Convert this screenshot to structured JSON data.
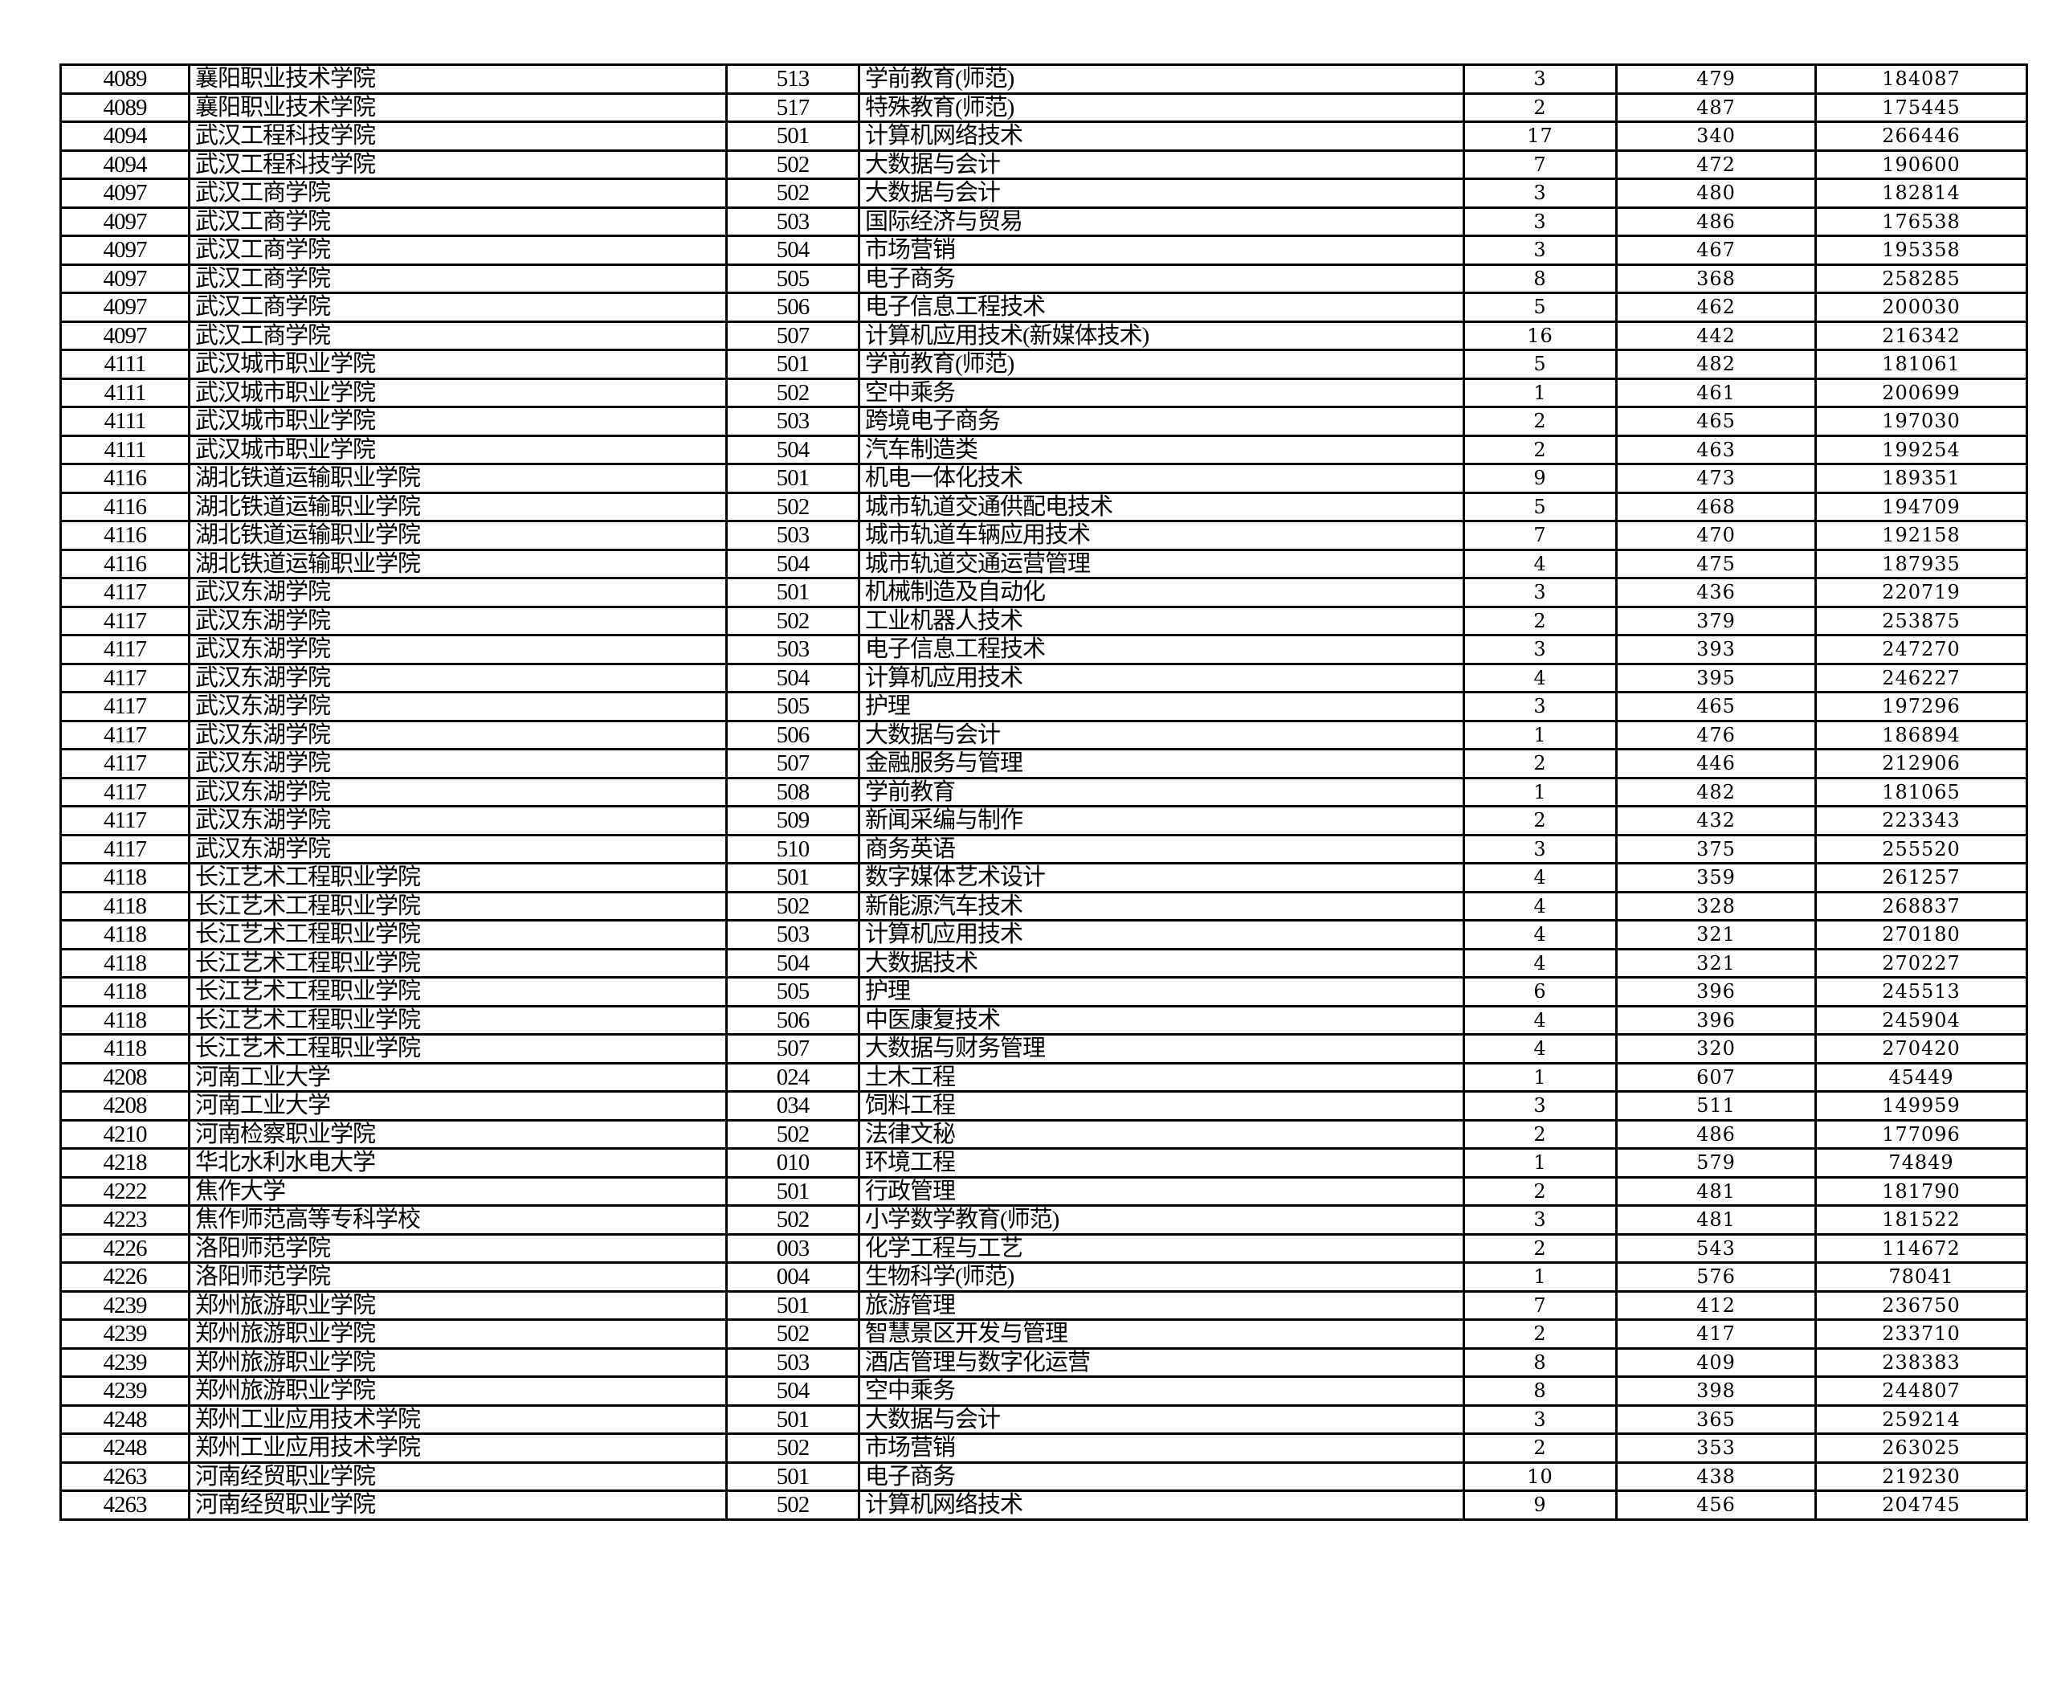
{
  "table": {
    "rows": [
      [
        "4089",
        "襄阳职业技术学院",
        "513",
        "学前教育(师范)",
        "3",
        "479",
        "184087"
      ],
      [
        "4089",
        "襄阳职业技术学院",
        "517",
        "特殊教育(师范)",
        "2",
        "487",
        "175445"
      ],
      [
        "4094",
        "武汉工程科技学院",
        "501",
        "计算机网络技术",
        "17",
        "340",
        "266446"
      ],
      [
        "4094",
        "武汉工程科技学院",
        "502",
        "大数据与会计",
        "7",
        "472",
        "190600"
      ],
      [
        "4097",
        "武汉工商学院",
        "502",
        "大数据与会计",
        "3",
        "480",
        "182814"
      ],
      [
        "4097",
        "武汉工商学院",
        "503",
        "国际经济与贸易",
        "3",
        "486",
        "176538"
      ],
      [
        "4097",
        "武汉工商学院",
        "504",
        "市场营销",
        "3",
        "467",
        "195358"
      ],
      [
        "4097",
        "武汉工商学院",
        "505",
        "电子商务",
        "8",
        "368",
        "258285"
      ],
      [
        "4097",
        "武汉工商学院",
        "506",
        "电子信息工程技术",
        "5",
        "462",
        "200030"
      ],
      [
        "4097",
        "武汉工商学院",
        "507",
        "计算机应用技术(新媒体技术)",
        "16",
        "442",
        "216342"
      ],
      [
        "4111",
        "武汉城市职业学院",
        "501",
        "学前教育(师范)",
        "5",
        "482",
        "181061"
      ],
      [
        "4111",
        "武汉城市职业学院",
        "502",
        "空中乘务",
        "1",
        "461",
        "200699"
      ],
      [
        "4111",
        "武汉城市职业学院",
        "503",
        "跨境电子商务",
        "2",
        "465",
        "197030"
      ],
      [
        "4111",
        "武汉城市职业学院",
        "504",
        "汽车制造类",
        "2",
        "463",
        "199254"
      ],
      [
        "4116",
        "湖北铁道运输职业学院",
        "501",
        "机电一体化技术",
        "9",
        "473",
        "189351"
      ],
      [
        "4116",
        "湖北铁道运输职业学院",
        "502",
        "城市轨道交通供配电技术",
        "5",
        "468",
        "194709"
      ],
      [
        "4116",
        "湖北铁道运输职业学院",
        "503",
        "城市轨道车辆应用技术",
        "7",
        "470",
        "192158"
      ],
      [
        "4116",
        "湖北铁道运输职业学院",
        "504",
        "城市轨道交通运营管理",
        "4",
        "475",
        "187935"
      ],
      [
        "4117",
        "武汉东湖学院",
        "501",
        "机械制造及自动化",
        "3",
        "436",
        "220719"
      ],
      [
        "4117",
        "武汉东湖学院",
        "502",
        "工业机器人技术",
        "2",
        "379",
        "253875"
      ],
      [
        "4117",
        "武汉东湖学院",
        "503",
        "电子信息工程技术",
        "3",
        "393",
        "247270"
      ],
      [
        "4117",
        "武汉东湖学院",
        "504",
        "计算机应用技术",
        "4",
        "395",
        "246227"
      ],
      [
        "4117",
        "武汉东湖学院",
        "505",
        "护理",
        "3",
        "465",
        "197296"
      ],
      [
        "4117",
        "武汉东湖学院",
        "506",
        "大数据与会计",
        "1",
        "476",
        "186894"
      ],
      [
        "4117",
        "武汉东湖学院",
        "507",
        "金融服务与管理",
        "2",
        "446",
        "212906"
      ],
      [
        "4117",
        "武汉东湖学院",
        "508",
        "学前教育",
        "1",
        "482",
        "181065"
      ],
      [
        "4117",
        "武汉东湖学院",
        "509",
        "新闻采编与制作",
        "2",
        "432",
        "223343"
      ],
      [
        "4117",
        "武汉东湖学院",
        "510",
        "商务英语",
        "3",
        "375",
        "255520"
      ],
      [
        "4118",
        "长江艺术工程职业学院",
        "501",
        "数字媒体艺术设计",
        "4",
        "359",
        "261257"
      ],
      [
        "4118",
        "长江艺术工程职业学院",
        "502",
        "新能源汽车技术",
        "4",
        "328",
        "268837"
      ],
      [
        "4118",
        "长江艺术工程职业学院",
        "503",
        "计算机应用技术",
        "4",
        "321",
        "270180"
      ],
      [
        "4118",
        "长江艺术工程职业学院",
        "504",
        "大数据技术",
        "4",
        "321",
        "270227"
      ],
      [
        "4118",
        "长江艺术工程职业学院",
        "505",
        "护理",
        "6",
        "396",
        "245513"
      ],
      [
        "4118",
        "长江艺术工程职业学院",
        "506",
        "中医康复技术",
        "4",
        "396",
        "245904"
      ],
      [
        "4118",
        "长江艺术工程职业学院",
        "507",
        "大数据与财务管理",
        "4",
        "320",
        "270420"
      ],
      [
        "4208",
        "河南工业大学",
        "024",
        "土木工程",
        "1",
        "607",
        "45449"
      ],
      [
        "4208",
        "河南工业大学",
        "034",
        "饲料工程",
        "3",
        "511",
        "149959"
      ],
      [
        "4210",
        "河南检察职业学院",
        "502",
        "法律文秘",
        "2",
        "486",
        "177096"
      ],
      [
        "4218",
        "华北水利水电大学",
        "010",
        "环境工程",
        "1",
        "579",
        "74849"
      ],
      [
        "4222",
        "焦作大学",
        "501",
        "行政管理",
        "2",
        "481",
        "181790"
      ],
      [
        "4223",
        "焦作师范高等专科学校",
        "502",
        "小学数学教育(师范)",
        "3",
        "481",
        "181522"
      ],
      [
        "4226",
        "洛阳师范学院",
        "003",
        "化学工程与工艺",
        "2",
        "543",
        "114672"
      ],
      [
        "4226",
        "洛阳师范学院",
        "004",
        "生物科学(师范)",
        "1",
        "576",
        "78041"
      ],
      [
        "4239",
        "郑州旅游职业学院",
        "501",
        "旅游管理",
        "7",
        "412",
        "236750"
      ],
      [
        "4239",
        "郑州旅游职业学院",
        "502",
        "智慧景区开发与管理",
        "2",
        "417",
        "233710"
      ],
      [
        "4239",
        "郑州旅游职业学院",
        "503",
        "酒店管理与数字化运营",
        "8",
        "409",
        "238383"
      ],
      [
        "4239",
        "郑州旅游职业学院",
        "504",
        "空中乘务",
        "8",
        "398",
        "244807"
      ],
      [
        "4248",
        "郑州工业应用技术学院",
        "501",
        "大数据与会计",
        "3",
        "365",
        "259214"
      ],
      [
        "4248",
        "郑州工业应用技术学院",
        "502",
        "市场营销",
        "2",
        "353",
        "263025"
      ],
      [
        "4263",
        "河南经贸职业学院",
        "501",
        "电子商务",
        "10",
        "438",
        "219230"
      ],
      [
        "4263",
        "河南经贸职业学院",
        "502",
        "计算机网络技术",
        "9",
        "456",
        "204745"
      ]
    ]
  }
}
